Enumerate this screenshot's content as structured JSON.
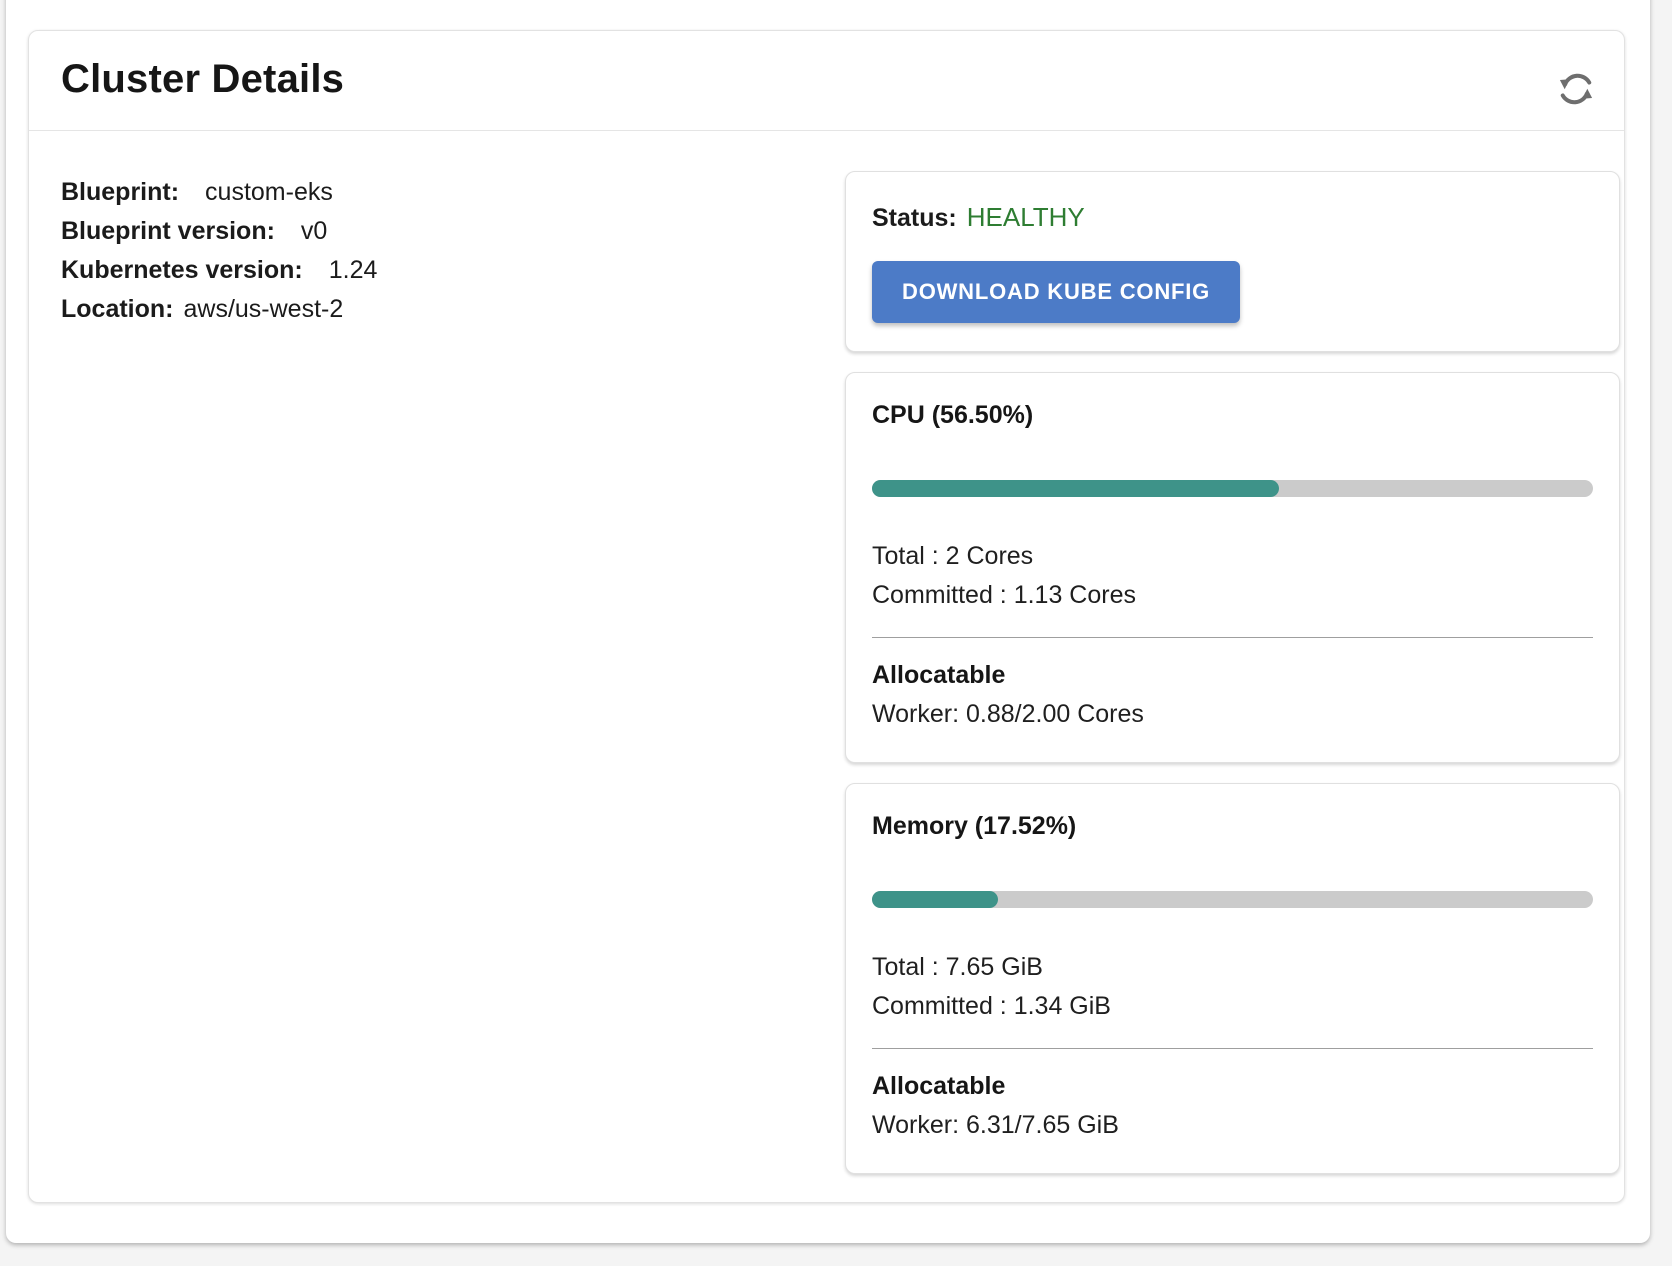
{
  "panel": {
    "title": "Cluster Details"
  },
  "details": {
    "rows": [
      {
        "label": "Blueprint:",
        "value": "custom-eks"
      },
      {
        "label": "Blueprint version:",
        "value": "v0"
      },
      {
        "label": "Kubernetes version:",
        "value": "1.24"
      },
      {
        "label": "Location:",
        "value": "aws/us-west-2"
      }
    ]
  },
  "status": {
    "label": "Status:",
    "value": "HEALTHY",
    "download_button": "DOWNLOAD KUBE CONFIG"
  },
  "cpu": {
    "title": "CPU (56.50%)",
    "percent": 56.5,
    "total_label": "Total : 2 Cores",
    "committed_label": "Committed : 1.13 Cores",
    "allocatable_heading": "Allocatable",
    "worker_label": "Worker: 0.88/2.00 Cores"
  },
  "memory": {
    "title": "Memory (17.52%)",
    "percent": 17.52,
    "total_label": "Total : 7.65 GiB",
    "committed_label": "Committed : 1.34 GiB",
    "allocatable_heading": "Allocatable",
    "worker_label": "Worker: 6.31/7.65 GiB"
  },
  "icons": {
    "refresh": "sync-refresh-icon"
  },
  "colors": {
    "progress_fill": "#3e9389",
    "progress_track": "#cbcbcb",
    "button_blue": "#4c7bc7",
    "healthy_green": "#2e7d32",
    "icon_gray": "#6e6e6e"
  }
}
